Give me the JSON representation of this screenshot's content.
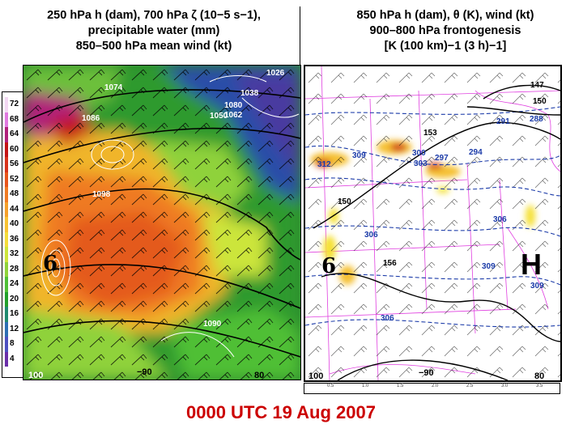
{
  "left_title": {
    "line1": "250 hPa h (dam), 700 hPa ζ (10−5 s−1),",
    "line2": "precipitable water (mm)",
    "line3": "850–500 hPa mean wind (kt)"
  },
  "right_title": {
    "line1": "850 hPa h (dam), θ (K), wind (kt)",
    "line2": "900–800 hPa frontogenesis",
    "line3": "[K (100 km)−1 (3 h)−1]"
  },
  "colorbar": {
    "labels": [
      "72",
      "68",
      "64",
      "60",
      "56",
      "52",
      "48",
      "44",
      "40",
      "36",
      "32",
      "28",
      "24",
      "20",
      "16",
      "12",
      "8",
      "4"
    ],
    "colors": [
      "#f2d7f2",
      "#e07ae0",
      "#b0207a",
      "#c41515",
      "#d8321a",
      "#e8551b",
      "#f07a22",
      "#f5a02a",
      "#f8c232",
      "#f4dc3a",
      "#cce53a",
      "#8fd23a",
      "#4fbf36",
      "#22a02a",
      "#1f8a6e",
      "#2d6fb3",
      "#4d4fc0",
      "#6a2ea8"
    ]
  },
  "left_panel": {
    "height_labels": [
      "1074",
      "1086",
      "1098",
      "1080",
      "1038",
      "1026",
      "1050",
      "1062",
      "1090"
    ],
    "edge_labels": [
      "100",
      "−90",
      "80"
    ],
    "symbol": "6"
  },
  "right_panel": {
    "height_labels": [
      "147",
      "150",
      "153",
      "150",
      "156"
    ],
    "theta_labels": [
      "291",
      "288",
      "309",
      "300",
      "297",
      "303",
      "294",
      "312",
      "306",
      "306",
      "309",
      "306",
      "309"
    ],
    "edge_labels": [
      "100",
      "−90",
      "80"
    ],
    "symbol": "6",
    "high_marker": "H",
    "frontogenesis_scale": [
      "0.5",
      "1.0",
      "1.5",
      "2.0",
      "2.5",
      "3.0",
      "3.5"
    ]
  },
  "timestamp": "0000 UTC 19 Aug 2007"
}
